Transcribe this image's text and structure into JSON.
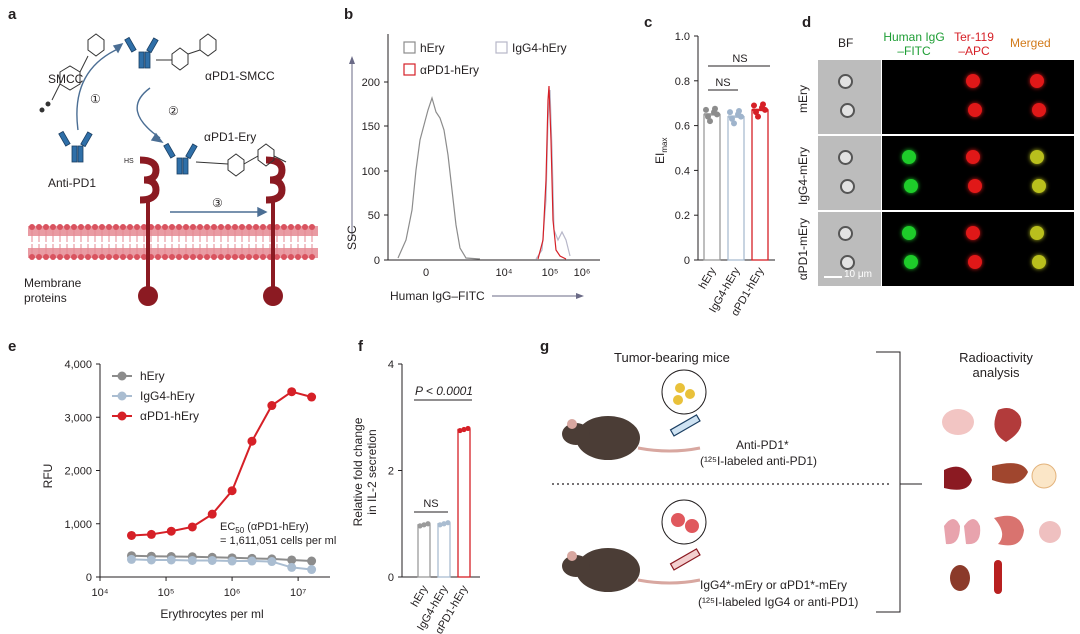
{
  "panels": {
    "a": {
      "label": "a",
      "smcc": "SMCC",
      "apd1_smcc": "αPD1-SMCC",
      "apd1_ery": "αPD1-Ery",
      "anti_pd1": "Anti-PD1",
      "membrane": "Membrane\nproteins",
      "membrane_l1": "Membrane",
      "membrane_l2": "proteins",
      "hs": "HS",
      "steps": [
        "①",
        "②",
        "③"
      ]
    },
    "b": {
      "label": "b",
      "ylabel": "SSC",
      "xlabel": "Human IgG–FITC",
      "legend": [
        "hEry",
        "IgG4-hEry",
        "αPD1-hEry"
      ],
      "yticks": [
        "0",
        "50",
        "100",
        "150",
        "200"
      ],
      "xticks": [
        "0",
        "10⁴",
        "10⁵",
        "10⁶"
      ]
    },
    "c": {
      "label": "c",
      "ylabel": "EI",
      "ylabel_sub": "max",
      "yticks": [
        "0",
        "0.2",
        "0.4",
        "0.6",
        "0.8",
        "1.0"
      ],
      "categories": [
        "hEry",
        "IgG4-hEry",
        "αPD1-hEry"
      ],
      "ns1": "NS",
      "ns2": "NS"
    },
    "d": {
      "label": "d",
      "col_bf": "BF",
      "col_igg_l1": "Human IgG",
      "col_igg_l2": "–FITC",
      "col_ter_l1": "Ter-119",
      "col_ter_l2": "–APC",
      "col_merged": "Merged",
      "rows": [
        "mEry",
        "IgG4-mEry",
        "αPD1-mEry"
      ],
      "scale": "10 μm"
    },
    "e": {
      "label": "e",
      "ylabel": "RFU",
      "xlabel": "Erythrocytes per ml",
      "legend": [
        "hEry",
        "IgG4-hEry",
        "αPD1-hEry"
      ],
      "ec50_l1": "EC",
      "ec50_sub": "50",
      "ec50_l1b": " (αPD1-hEry)",
      "ec50_l2": "= 1,611,051 cells per ml",
      "yticks": [
        "0",
        "1,000",
        "2,000",
        "3,000",
        "4,000"
      ],
      "xticks": [
        "10⁴",
        "10⁵",
        "10⁶",
        "10⁷"
      ]
    },
    "f": {
      "label": "f",
      "ylabel_l1": "Relative fold change",
      "ylabel_l2": "in IL-2 secretion",
      "yticks": [
        "0",
        "2",
        "4"
      ],
      "categories": [
        "hEry",
        "IgG4-hEry",
        "αPD1-hEry"
      ],
      "pvalue": "P < 0.0001",
      "ns": "NS"
    },
    "g": {
      "label": "g",
      "tumor_mice": "Tumor-bearing mice",
      "radio_l1": "Radioactivity",
      "radio_l2": "analysis",
      "anti_pd1_star": "Anti-PD1*",
      "anti_pd1_desc": "(¹²⁵I-labeled anti-PD1)",
      "ery_star": "IgG4*-mEry or αPD1*-mEry",
      "ery_desc": "(¹²⁵I-labeled IgG4 or anti-PD1)"
    }
  },
  "chart_data": [
    {
      "type": "line",
      "panel": "e",
      "xlabel": "Erythrocytes per ml",
      "ylabel": "RFU",
      "xscale": "log",
      "xlim": [
        10000,
        20000000
      ],
      "ylim": [
        0,
        4000
      ],
      "x": [
        30000,
        60000,
        120000,
        250000,
        500000,
        1000000,
        2000000,
        4000000,
        8000000,
        16000000
      ],
      "series": [
        {
          "name": "hEry",
          "color": "#8c8c8c",
          "values": [
            400,
            390,
            385,
            380,
            370,
            360,
            350,
            340,
            320,
            300
          ]
        },
        {
          "name": "IgG4-hEry",
          "color": "#aabdd1",
          "values": [
            330,
            320,
            320,
            310,
            310,
            300,
            300,
            290,
            180,
            140
          ]
        },
        {
          "name": "αPD1-hEry",
          "color": "#d62027",
          "values": [
            780,
            800,
            860,
            940,
            1180,
            1620,
            2550,
            3220,
            3480,
            3380
          ]
        }
      ]
    },
    {
      "type": "bar",
      "panel": "c",
      "categories": [
        "hEry",
        "IgG4-hEry",
        "αPD1-hEry"
      ],
      "values": [
        0.65,
        0.64,
        0.67
      ],
      "ylim": [
        0,
        1.0
      ],
      "ylabel": "EImax"
    },
    {
      "type": "bar",
      "panel": "f",
      "categories": [
        "hEry",
        "IgG4-hEry",
        "αPD1-hEry"
      ],
      "values": [
        0.98,
        1.0,
        2.77
      ],
      "ylim": [
        0,
        4
      ],
      "ylabel": "Relative fold change in IL-2 secretion"
    }
  ]
}
